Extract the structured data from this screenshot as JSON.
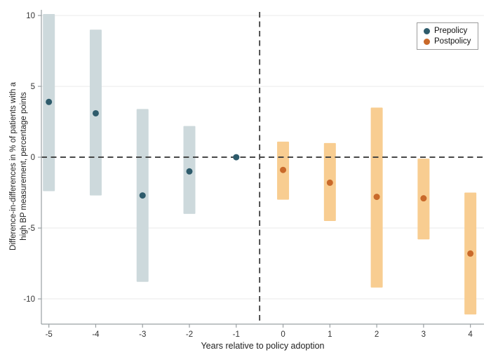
{
  "chart_data": {
    "type": "scatter",
    "title": "",
    "xlabel": "Years relative to policy adoption",
    "ylabel_lines": [
      "Difference-in-differences in % of patients with a",
      "high BP measurement, percentage points"
    ],
    "x_ticks": [
      -5,
      -4,
      -3,
      -2,
      -1,
      0,
      1,
      2,
      3,
      4
    ],
    "y_ticks": [
      10,
      5,
      0,
      -5,
      -10
    ],
    "xlim": [
      -5.16,
      4.29
    ],
    "ylim": [
      -11.78,
      10.4
    ],
    "grid": "horizontal-light",
    "legend_position": "top-right",
    "reference_lines": {
      "horizontal_y": 0,
      "vertical_x": -0.5,
      "style": "dashed",
      "color": "#3d3d3d"
    },
    "series": [
      {
        "name": "Prepolicy",
        "dot_color": "#2e5b6b",
        "bar_color": "#cdd9dc",
        "points": [
          {
            "x": -5,
            "est": 3.9,
            "lo": -2.4,
            "hi": 10.1
          },
          {
            "x": -4,
            "est": 3.1,
            "lo": -2.7,
            "hi": 9.0
          },
          {
            "x": -3,
            "est": -2.7,
            "lo": -8.8,
            "hi": 3.4
          },
          {
            "x": -2,
            "est": -1.0,
            "lo": -4.0,
            "hi": 2.2
          },
          {
            "x": -1,
            "est": 0.0,
            "lo": null,
            "hi": null
          }
        ]
      },
      {
        "name": "Postpolicy",
        "dot_color": "#c9692a",
        "bar_color": "#f8cd91",
        "points": [
          {
            "x": 0,
            "est": -0.9,
            "lo": -3.0,
            "hi": 1.1
          },
          {
            "x": 1,
            "est": -1.8,
            "lo": -4.5,
            "hi": 1.0
          },
          {
            "x": 2,
            "est": -2.8,
            "lo": -9.2,
            "hi": 3.5
          },
          {
            "x": 3,
            "est": -2.9,
            "lo": -5.8,
            "hi": -0.1
          },
          {
            "x": 4,
            "est": -6.8,
            "lo": -11.1,
            "hi": -2.5
          }
        ]
      }
    ]
  }
}
